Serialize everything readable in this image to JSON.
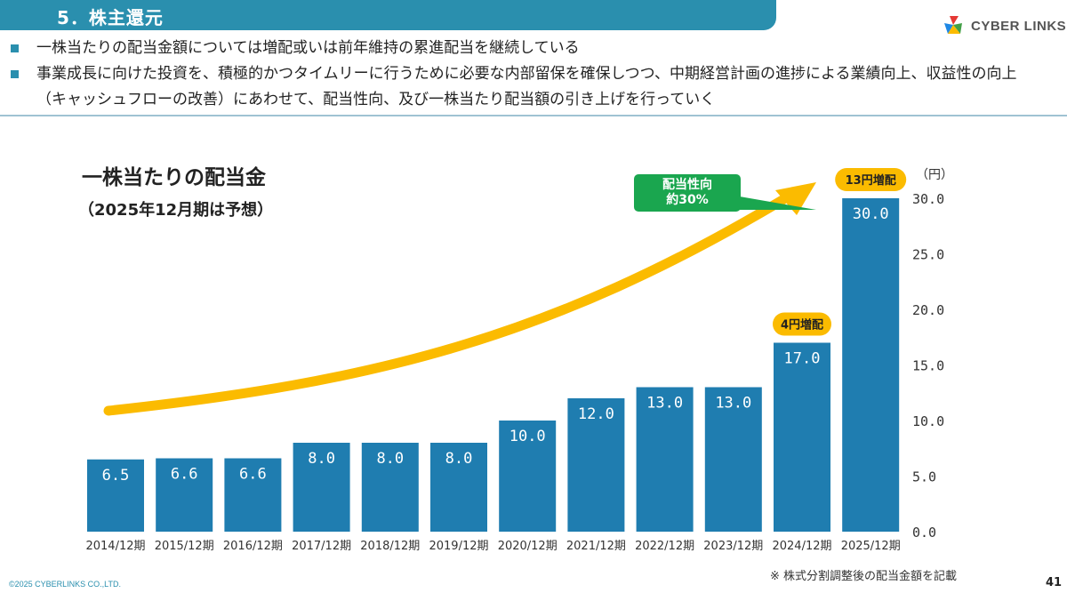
{
  "header": {
    "title": "5．株主還元"
  },
  "logo": {
    "text": "CYBER LINKS"
  },
  "bullets": [
    "一株当たりの配当金額については増配或いは前年維持の累進配当を継続している",
    "事業成長に向けた投資を、積極的かつタイムリーに行うために必要な内部留保を確保しつつ、中期経営計画の進捗による業績向上、収益性の向上（キャッシュフローの改善）にあわせて、配当性向、及び一株当たり配当額の引き上げを行っていく"
  ],
  "colors": {
    "header": "#2a8fae",
    "bar": "#1f7db0",
    "arrow": "#fbbb00",
    "callout": "#1aa64f",
    "badge": "#fbbb00"
  },
  "chart_data": {
    "type": "bar",
    "title": "一株当たりの配当金",
    "subtitle": "（2025年12月期は予想）",
    "unit": "（円）",
    "categories": [
      "2014/12期",
      "2015/12期",
      "2016/12期",
      "2017/12期",
      "2018/12期",
      "2019/12期",
      "2020/12期",
      "2021/12期",
      "2022/12期",
      "2023/12期",
      "2024/12期",
      "2025/12期"
    ],
    "values": [
      6.5,
      6.6,
      6.6,
      8.0,
      8.0,
      8.0,
      10.0,
      12.0,
      13.0,
      13.0,
      17.0,
      30.0
    ],
    "value_labels": [
      "6.5",
      "6.6",
      "6.6",
      "8.0",
      "8.0",
      "8.0",
      "10.0",
      "12.0",
      "13.0",
      "13.0",
      "17.0",
      "30.0"
    ],
    "ylim": [
      0,
      30
    ],
    "yticks": [
      "0.0",
      "5.0",
      "10.0",
      "15.0",
      "20.0",
      "25.0",
      "30.0"
    ],
    "y_axis_position": "right",
    "grid": false,
    "badges": [
      {
        "category": "2024/12期",
        "label": "4円増配"
      },
      {
        "category": "2025/12期",
        "label": "13円増配"
      }
    ],
    "callout": {
      "line1": "配当性向",
      "line2": "約30%"
    }
  },
  "footnote": "※ 株式分割調整後の配当金額を記載",
  "copyright": "©2025 CYBERLINKS CO.,LTD.",
  "page_number": "41"
}
